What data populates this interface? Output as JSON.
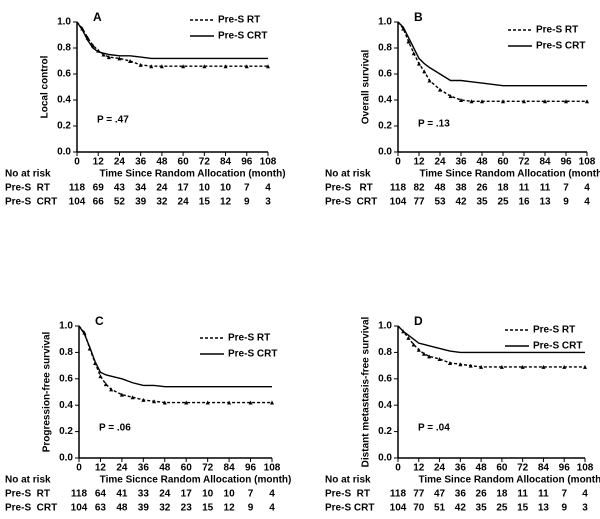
{
  "chart_data": [
    {
      "type": "line",
      "panel": "A",
      "y_label": "Local control",
      "x_label": "Time Since Random Allocation (month)",
      "annotation": "P = .47",
      "x": [
        0,
        3,
        6,
        9,
        12,
        15,
        18,
        24,
        30,
        36,
        42,
        48,
        60,
        72,
        84,
        96,
        108
      ],
      "series": [
        {
          "name": "Pre-S RT",
          "color": "#000000",
          "style": "dashed",
          "values": [
            1,
            0.95,
            0.88,
            0.82,
            0.78,
            0.75,
            0.73,
            0.72,
            0.7,
            0.67,
            0.66,
            0.66,
            0.66,
            0.66,
            0.66,
            0.66,
            0.66
          ]
        },
        {
          "name": "Pre-S CRT",
          "color": "#000000",
          "style": "solid",
          "values": [
            1,
            0.94,
            0.86,
            0.8,
            0.77,
            0.76,
            0.75,
            0.74,
            0.74,
            0.73,
            0.72,
            0.72,
            0.72,
            0.72,
            0.72,
            0.72,
            0.72
          ]
        }
      ],
      "xlim": [
        0,
        108
      ],
      "xticks": [
        0,
        12,
        24,
        36,
        48,
        60,
        72,
        84,
        96,
        108
      ],
      "ylim": [
        0,
        1
      ],
      "yticks": [
        {
          "value": 0,
          "label": "0.0"
        },
        0.2,
        0.4,
        0.6,
        0.8,
        {
          "value": 1,
          "label": "1.0"
        }
      ],
      "risk_table": {
        "title": "No at risk",
        "rows": [
          {
            "label": "Pre-S  RT",
            "values": [
              118,
              69,
              43,
              34,
              24,
              17,
              10,
              10,
              7,
              4
            ]
          },
          {
            "label": "Pre-S  CRT",
            "values": [
              104,
              66,
              52,
              39,
              32,
              24,
              15,
              12,
              9,
              3
            ]
          }
        ]
      }
    },
    {
      "type": "line",
      "panel": "B",
      "y_label": "Overall survival",
      "x_label": "Time Since Random Allocation (month)",
      "annotation": "P = .13",
      "x": [
        0,
        3,
        6,
        9,
        12,
        15,
        18,
        24,
        30,
        36,
        42,
        48,
        60,
        72,
        84,
        96,
        108
      ],
      "series": [
        {
          "name": "Pre-S RT",
          "color": "#000000",
          "style": "dashed",
          "values": [
            1,
            0.95,
            0.85,
            0.76,
            0.68,
            0.62,
            0.55,
            0.48,
            0.43,
            0.4,
            0.39,
            0.39,
            0.39,
            0.39,
            0.39,
            0.39,
            0.39
          ]
        },
        {
          "name": "Pre-S CRT",
          "color": "#000000",
          "style": "solid",
          "values": [
            1,
            0.96,
            0.88,
            0.8,
            0.72,
            0.68,
            0.65,
            0.6,
            0.55,
            0.55,
            0.54,
            0.53,
            0.51,
            0.51,
            0.51,
            0.51,
            0.51
          ]
        }
      ],
      "xlim": [
        0,
        108
      ],
      "xticks": [
        0,
        12,
        24,
        36,
        48,
        60,
        72,
        84,
        96,
        108
      ],
      "ylim": [
        0,
        1
      ],
      "yticks": [
        {
          "value": 0,
          "label": "0.0"
        },
        0.2,
        0.4,
        0.6,
        0.8,
        {
          "value": 1,
          "label": "1.0"
        }
      ],
      "risk_table": {
        "title": "No at risk",
        "rows": [
          {
            "label": "Pre-S   RT",
            "values": [
              118,
              82,
              48,
              38,
              26,
              18,
              11,
              11,
              7,
              4
            ]
          },
          {
            "label": "Pre-S  CRT",
            "values": [
              104,
              77,
              53,
              42,
              35,
              25,
              16,
              13,
              9,
              4
            ]
          }
        ]
      }
    },
    {
      "type": "line",
      "panel": "C",
      "y_label": "Progression-free survival",
      "x_label": "Time Sicnce Random Allocation (month)",
      "annotation": "P = .06",
      "x": [
        0,
        3,
        6,
        9,
        12,
        15,
        18,
        24,
        30,
        36,
        42,
        48,
        60,
        72,
        84,
        96,
        108
      ],
      "series": [
        {
          "name": "Pre-S RT",
          "color": "#000000",
          "style": "dashed",
          "values": [
            1,
            0.95,
            0.83,
            0.72,
            0.62,
            0.56,
            0.52,
            0.48,
            0.46,
            0.44,
            0.43,
            0.42,
            0.42,
            0.42,
            0.42,
            0.42,
            0.42
          ]
        },
        {
          "name": "Pre-S CRT",
          "color": "#000000",
          "style": "solid",
          "values": [
            1,
            0.94,
            0.84,
            0.73,
            0.65,
            0.63,
            0.62,
            0.6,
            0.57,
            0.55,
            0.55,
            0.54,
            0.54,
            0.54,
            0.54,
            0.54,
            0.54
          ]
        }
      ],
      "xlim": [
        0,
        108
      ],
      "xticks": [
        0,
        12,
        24,
        36,
        48,
        60,
        72,
        84,
        96,
        108
      ],
      "ylim": [
        0,
        1
      ],
      "yticks": [
        {
          "value": 0,
          "label": "0.0"
        },
        0.2,
        0.4,
        0.6,
        0.8,
        {
          "value": 1,
          "label": "1.0"
        }
      ],
      "risk_table": {
        "title": "No at risk",
        "rows": [
          {
            "label": "Pre-S  RT",
            "values": [
              118,
              64,
              41,
              33,
              24,
              17,
              10,
              10,
              7,
              4
            ]
          },
          {
            "label": "Pre-S  CRT",
            "values": [
              104,
              63,
              48,
              39,
              32,
              23,
              15,
              12,
              9,
              4
            ]
          }
        ]
      }
    },
    {
      "type": "line",
      "panel": "D",
      "y_label": "Distant metastasis-free survival",
      "x_label": "Time Since Random Allocation (month)",
      "annotation": "P = .04",
      "x": [
        0,
        3,
        6,
        9,
        12,
        15,
        18,
        24,
        30,
        36,
        42,
        48,
        60,
        72,
        84,
        96,
        108
      ],
      "series": [
        {
          "name": "Pre-S RT",
          "color": "#000000",
          "style": "dashed",
          "values": [
            1,
            0.96,
            0.91,
            0.86,
            0.82,
            0.79,
            0.77,
            0.75,
            0.72,
            0.71,
            0.7,
            0.69,
            0.69,
            0.69,
            0.69,
            0.69,
            0.69
          ]
        },
        {
          "name": "Pre-S CRT",
          "color": "#000000",
          "style": "solid",
          "values": [
            1,
            0.96,
            0.93,
            0.9,
            0.87,
            0.86,
            0.85,
            0.83,
            0.81,
            0.8,
            0.8,
            0.8,
            0.8,
            0.8,
            0.8,
            0.8,
            0.8
          ]
        }
      ],
      "xlim": [
        0,
        108
      ],
      "xticks": [
        0,
        12,
        24,
        36,
        48,
        60,
        72,
        84,
        96,
        108
      ],
      "ylim": [
        0,
        1
      ],
      "yticks": [
        {
          "value": 0,
          "label": "0.0"
        },
        0.2,
        0.4,
        0.6,
        0.8,
        {
          "value": 1,
          "label": "1.0"
        }
      ],
      "risk_table": {
        "title": "No at risk",
        "rows": [
          {
            "label": "Pre-S  RT",
            "values": [
              118,
              77,
              47,
              36,
              26,
              18,
              11,
              11,
              7,
              4
            ]
          },
          {
            "label": "Pre-S CRT",
            "values": [
              104,
              70,
              51,
              42,
              35,
              25,
              15,
              13,
              9,
              3
            ]
          }
        ]
      }
    }
  ]
}
